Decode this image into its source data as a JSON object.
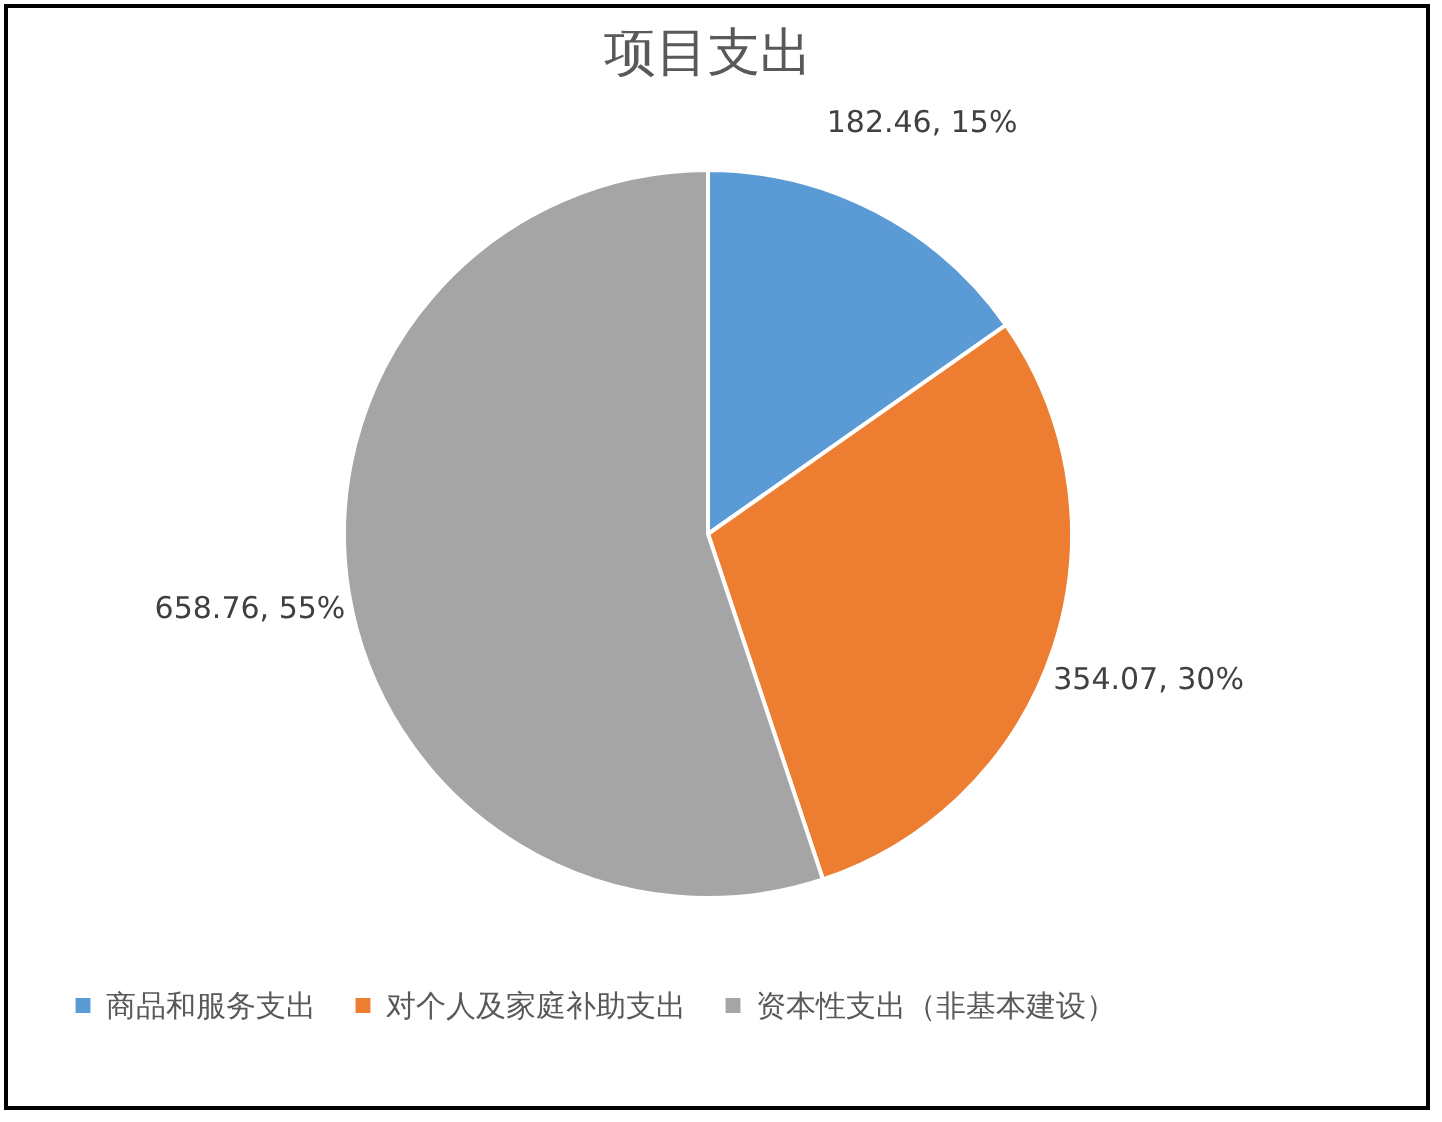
{
  "chart_data": {
    "type": "pie",
    "title": "项目支出",
    "categories": [
      "商品和服务支出",
      "对个人及家庭补助支出",
      "资本性支出（非基本建设）"
    ],
    "values": [
      182.46,
      354.07,
      658.76
    ],
    "colors": [
      "#5b9bd5",
      "#ed7d31",
      "#a5a5a5"
    ],
    "value_labels": [
      "182.46, 15%",
      "354.07, 30%",
      "658.76, 55%"
    ],
    "legend": "bottom"
  }
}
